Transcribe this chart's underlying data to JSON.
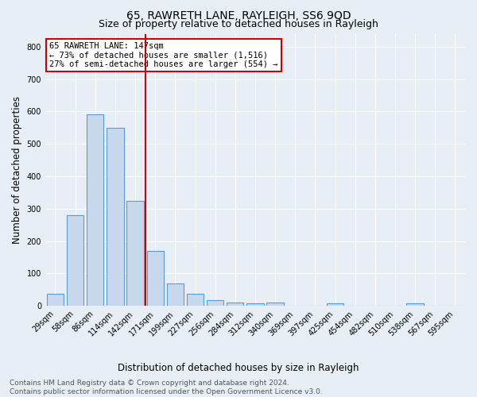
{
  "title": "65, RAWRETH LANE, RAYLEIGH, SS6 9QD",
  "subtitle": "Size of property relative to detached houses in Rayleigh",
  "xlabel": "Distribution of detached houses by size in Rayleigh",
  "ylabel": "Number of detached properties",
  "categories": [
    "29sqm",
    "58sqm",
    "86sqm",
    "114sqm",
    "142sqm",
    "171sqm",
    "199sqm",
    "227sqm",
    "256sqm",
    "284sqm",
    "312sqm",
    "340sqm",
    "369sqm",
    "397sqm",
    "425sqm",
    "454sqm",
    "482sqm",
    "510sqm",
    "538sqm",
    "567sqm",
    "595sqm"
  ],
  "values": [
    37,
    280,
    590,
    550,
    325,
    170,
    68,
    37,
    17,
    11,
    8,
    10,
    0,
    0,
    8,
    0,
    0,
    0,
    8,
    0,
    0
  ],
  "bar_color": "#c8d9ee",
  "bar_edge_color": "#5b9bd5",
  "vline_x": 4.5,
  "vline_color": "#cc0000",
  "annotation_text": "65 RAWRETH LANE: 147sqm\n← 73% of detached houses are smaller (1,516)\n27% of semi-detached houses are larger (554) →",
  "annotation_box_color": "#ffffff",
  "annotation_box_edge_color": "#cc0000",
  "ylim": [
    0,
    840
  ],
  "yticks": [
    0,
    100,
    200,
    300,
    400,
    500,
    600,
    700,
    800
  ],
  "background_color": "#e8eef6",
  "grid_color": "#ffffff",
  "footer_text": "Contains HM Land Registry data © Crown copyright and database right 2024.\nContains public sector information licensed under the Open Government Licence v3.0.",
  "title_fontsize": 10,
  "subtitle_fontsize": 9,
  "xlabel_fontsize": 8.5,
  "ylabel_fontsize": 8.5,
  "tick_fontsize": 7,
  "annotation_fontsize": 7.5,
  "footer_fontsize": 6.5
}
